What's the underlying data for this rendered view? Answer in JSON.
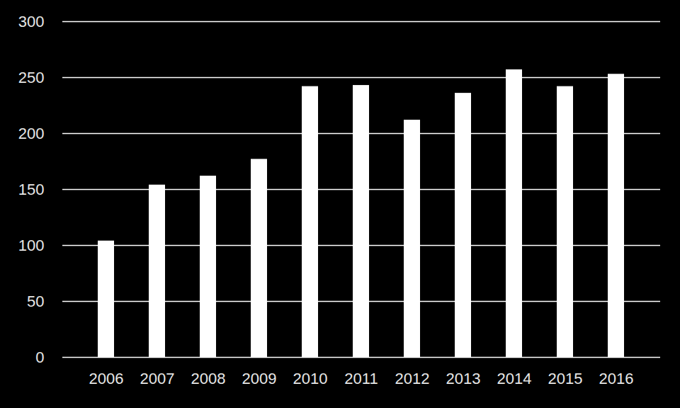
{
  "chart_data": {
    "type": "bar",
    "categories": [
      "2006",
      "2007",
      "2008",
      "2009",
      "2010",
      "2011",
      "2012",
      "2013",
      "2014",
      "2015",
      "2016"
    ],
    "values": [
      104,
      154,
      162,
      177,
      242,
      243,
      212,
      236,
      257,
      242,
      253
    ],
    "color": "#ffffff",
    "ylim": [
      0,
      300
    ],
    "yticks": [
      0,
      50,
      100,
      150,
      200,
      250,
      300
    ],
    "grid": true
  }
}
